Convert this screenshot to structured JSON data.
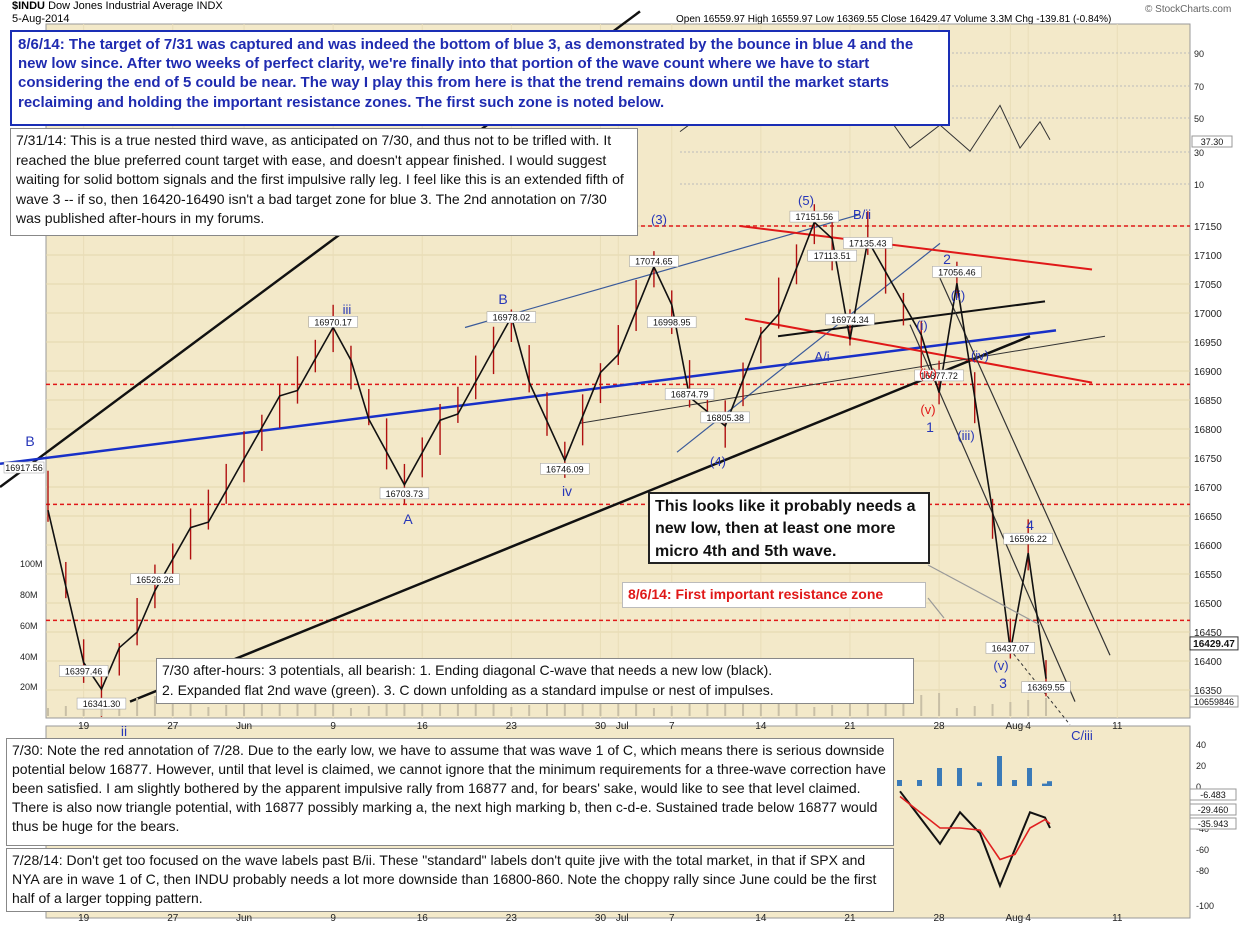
{
  "header": {
    "symbol": "$INDU",
    "name": "Dow Jones Industrial Average",
    "exchange": "INDX",
    "date": "5-Aug-2014",
    "ohlc": "Open 16559.97  High 16559.97  Low 16369.55  Close 16429.47  Volume 3.3M  Chg -139.81 (-0.84%)",
    "watermark": "© StockCharts.com"
  },
  "annotations": {
    "top_blue": "8/6/14:  The target of 7/31 was captured and was indeed the bottom of blue 3, as demonstrated by the bounce in blue 4 and the new low since.  After two weeks of perfect clarity, we're finally into that portion of the wave count where we have to start considering the end of 5 could be near.  The way I play this from here is that the trend remains down until the market starts reclaiming and holding the important resistance zones.  The first such zone is noted below.",
    "note_731": "7/31/14:  This is a true nested third wave, as anticipated on 7/30, and thus not to be trifled with.  It reached the blue preferred count target with ease, and doesn't appear finished.  I would suggest waiting for solid bottom signals and the first impulsive rally leg.  I feel like this is an extended fifth of wave 3 -- if so, then 16420-16490 isn't a bad target zone for blue 3.  The 2nd annotation on 7/30 was published after-hours in my forums.",
    "note_low": "This looks like it probably needs a new low, then at least one more micro 4th and 5th wave.",
    "resistance": "8/6/14: First important resistance zone",
    "note_730_ah": "7/30 after-hours:  3 potentials, all bearish:  1.  Ending diagonal C-wave that needs a new low (black).\n2.  Expanded flat 2nd wave (green).  3.  C down unfolding as a standard impulse or nest of impulses.",
    "note_730": "7/30:  Note the red annotation of 7/28.  Due to the early low, we have to assume that was wave 1 of C, which means there is serious downside potential below 16877.  However, until that level is claimed, we cannot ignore that the minimum requirements for a three-wave correction have been satisfied.  I am slightly bothered by the apparent impulsive rally from 16877 and, for bears' sake, would like to see that level claimed.  There is also now triangle potential, with 16877 possibly marking a, the next high marking b, then c-d-e.  Sustained trade below 16877 would thus be huge for the bears.",
    "note_728": "7/28/14:  Don't get too focused on the wave labels past B/ii.  These \"standard\" labels don't quite jive with the total market, in that if SPX and NYA are in wave 1 of C, then INDU probably needs a lot more downside than 16800-860.  Note the choppy rally since June could be the first half of a larger topping pattern."
  },
  "chart_data": [
    {
      "type": "line",
      "panel": "price",
      "x_ticks": [
        "19",
        "27",
        "Jun",
        "9",
        "16",
        "23",
        "30",
        "Jul",
        "7",
        "14",
        "21",
        "28",
        "Aug",
        "4",
        "11"
      ],
      "y_ticks": [
        16350,
        16400,
        16450,
        16500,
        16550,
        16600,
        16650,
        16700,
        16750,
        16800,
        16850,
        16900,
        16950,
        17000,
        17050,
        17100,
        17150
      ],
      "ylim": [
        16320,
        17210
      ],
      "close_label": "16429.47",
      "volume_label": "10659846",
      "volume_ticks": [
        "20M",
        "40M",
        "60M",
        "80M",
        "100M"
      ],
      "wave_points": [
        {
          "x": "5/19",
          "y": 16397.46,
          "label": "16397.46"
        },
        {
          "x": "5/20",
          "y": 16341.3,
          "label": "16341.30"
        },
        {
          "x": "5/23",
          "y": 16526.26,
          "label": "16526.26"
        },
        {
          "x": "6/9",
          "y": 16970.17,
          "label": "16970.17",
          "wave": "iii"
        },
        {
          "x": "6/13",
          "y": 16703.73,
          "label": "16703.73",
          "wave": "A"
        },
        {
          "x": "6/23",
          "y": 16978.02,
          "label": "16978.02",
          "wave": "B"
        },
        {
          "x": "6/26",
          "y": 16746.09,
          "label": "16746.09",
          "wave": "iv"
        },
        {
          "x": "7/3",
          "y": 17074.65,
          "label": "17074.65",
          "wave": "(3)"
        },
        {
          "x": "7/7",
          "y": 16998.95,
          "label": "16998.95"
        },
        {
          "x": "7/8",
          "y": 16874.79,
          "label": "16874.79"
        },
        {
          "x": "7/10",
          "y": 16805.38,
          "label": "16805.38",
          "wave": "(4)"
        },
        {
          "x": "7/17",
          "y": 17151.56,
          "label": "17151.56",
          "wave": "(5)"
        },
        {
          "x": "7/18",
          "y": 17113.51,
          "label": "17113.51"
        },
        {
          "x": "7/21",
          "y": 16974.34,
          "label": "16974.34",
          "wave": "A/i"
        },
        {
          "x": "7/22",
          "y": 17135.43,
          "label": "17135.43",
          "wave": "B/ii"
        },
        {
          "x": "7/28",
          "y": 16877.72,
          "label": "16877.72",
          "wave": "1"
        },
        {
          "x": "7/29",
          "y": 17056.46,
          "label": "17056.46",
          "wave": "2"
        },
        {
          "x": "8/1",
          "y": 16437.07,
          "label": "16437.07",
          "wave": "3"
        },
        {
          "x": "8/4",
          "y": 16596.22,
          "label": "16596.22",
          "wave": "4"
        },
        {
          "x": "8/5",
          "y": 16369.55,
          "label": "16369.55"
        }
      ],
      "wave_labels": [
        "B",
        "iii",
        "B",
        "A",
        "iv",
        "(3)",
        "(4)",
        "(5)",
        "B/ii",
        "A/i",
        "1",
        "2",
        "3",
        "4",
        "(i)",
        "(ii)",
        "(iii)",
        "(iv)",
        "(v)",
        "(iv)",
        "(v)",
        "C/iii",
        "ii"
      ],
      "left_pivot_label": "16917.56",
      "resistance_levels": [
        17150,
        16877,
        16670,
        16470
      ]
    },
    {
      "type": "line",
      "panel": "rsi",
      "y_ticks": [
        10,
        30,
        50,
        70,
        90
      ],
      "value_label": "37.30"
    },
    {
      "type": "line",
      "panel": "macd",
      "y_ticks": [
        40,
        20,
        0,
        -20,
        -40,
        -60,
        -80,
        -100
      ],
      "value_labels": [
        "-6.483",
        "-29.460",
        "-35.943"
      ]
    }
  ]
}
